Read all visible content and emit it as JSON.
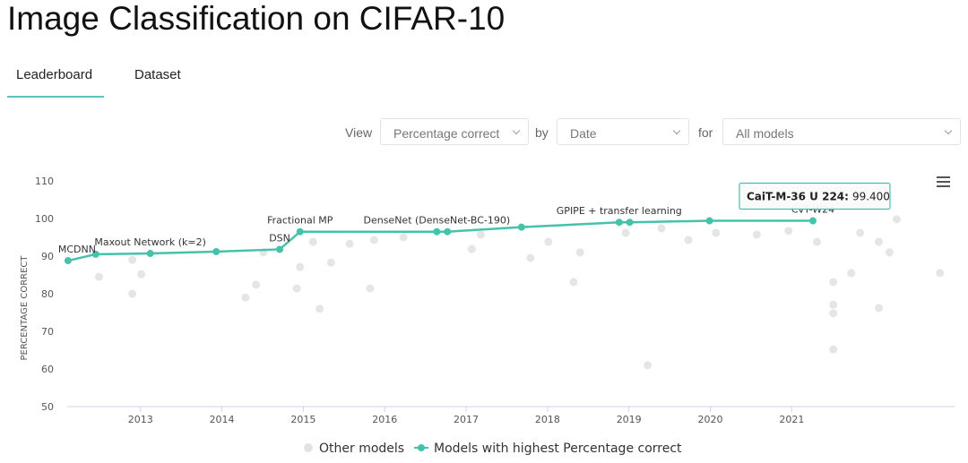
{
  "header": {
    "title": "Image Classification on CIFAR-10"
  },
  "tabs": [
    "Leaderboard",
    "Dataset"
  ],
  "controls": {
    "view_label": "View",
    "view": "Percentage correct",
    "by_label": "by",
    "by": "Date",
    "for_label": "for",
    "for": "All models"
  },
  "chart_data": {
    "type": "scatter",
    "y_label": "PERCENTAGE CORRECT",
    "xlim": [
      2012.1,
      2023.0
    ],
    "ylim": [
      50,
      110
    ],
    "xticks": [
      2013,
      2014,
      2015,
      2016,
      2017,
      2018,
      2019,
      2020,
      2021
    ],
    "yticks": [
      50,
      60,
      70,
      80,
      90,
      100,
      110
    ],
    "series": [
      {
        "name": "Other models",
        "color": "#e2e2e2",
        "x": [
          2012.49,
          2012.9,
          2013.01,
          2012.9,
          2014.29,
          2014.42,
          2014.51,
          2014.92,
          2014.96,
          2015.2,
          2015.12,
          2015.34,
          2015.57,
          2015.82,
          2015.87,
          2016.23,
          2017.07,
          2017.18,
          2017.79,
          2018.01,
          2018.32,
          2018.4,
          2018.96,
          2019.23,
          2019.4,
          2019.73,
          2020.07,
          2020.57,
          2020.96,
          2021.31,
          2021.51,
          2021.51,
          2021.51,
          2021.51,
          2021.73,
          2021.84,
          2022.07,
          2022.07,
          2022.2,
          2022.29,
          2022.82
        ],
        "values": [
          84.5,
          80,
          85.2,
          89,
          79,
          82.4,
          91,
          81.4,
          87.1,
          76,
          93.8,
          88.3,
          93.3,
          81.4,
          94.3,
          95,
          91.9,
          95.7,
          89.5,
          93.8,
          83.1,
          91,
          96.2,
          61,
          97.4,
          94.3,
          96.2,
          95.7,
          96.7,
          93.8,
          83.1,
          77.1,
          65.2,
          74.8,
          85.5,
          96.2,
          76.2,
          93.8,
          91,
          99.8,
          85.5
        ]
      },
      {
        "name": "Models with highest Percentage correct",
        "color": "#45c2ab",
        "line": true,
        "x": [
          2012.11,
          2012.45,
          2013.12,
          2013.93,
          2014.71,
          2014.96,
          2016.64,
          2016.77,
          2017.68,
          2018.88,
          2019.01,
          2019.99,
          2021.26
        ],
        "values": [
          88.8,
          90.5,
          90.7,
          91.2,
          91.8,
          96.5,
          96.5,
          96.5,
          97.7,
          99.0,
          99.0,
          99.4,
          99.4
        ],
        "point_labels": [
          "MCDNN",
          null,
          "Maxout Network (k=2)",
          null,
          "DSN",
          "Fractional MP",
          "DenseNet (DenseNet-BC-190)",
          null,
          null,
          "GPIPE + transfer learning",
          null,
          null,
          "CvT-W24"
        ]
      }
    ],
    "tooltip": {
      "name": "CaiT-M-36 U 224:",
      "value_label": "99.400"
    }
  }
}
